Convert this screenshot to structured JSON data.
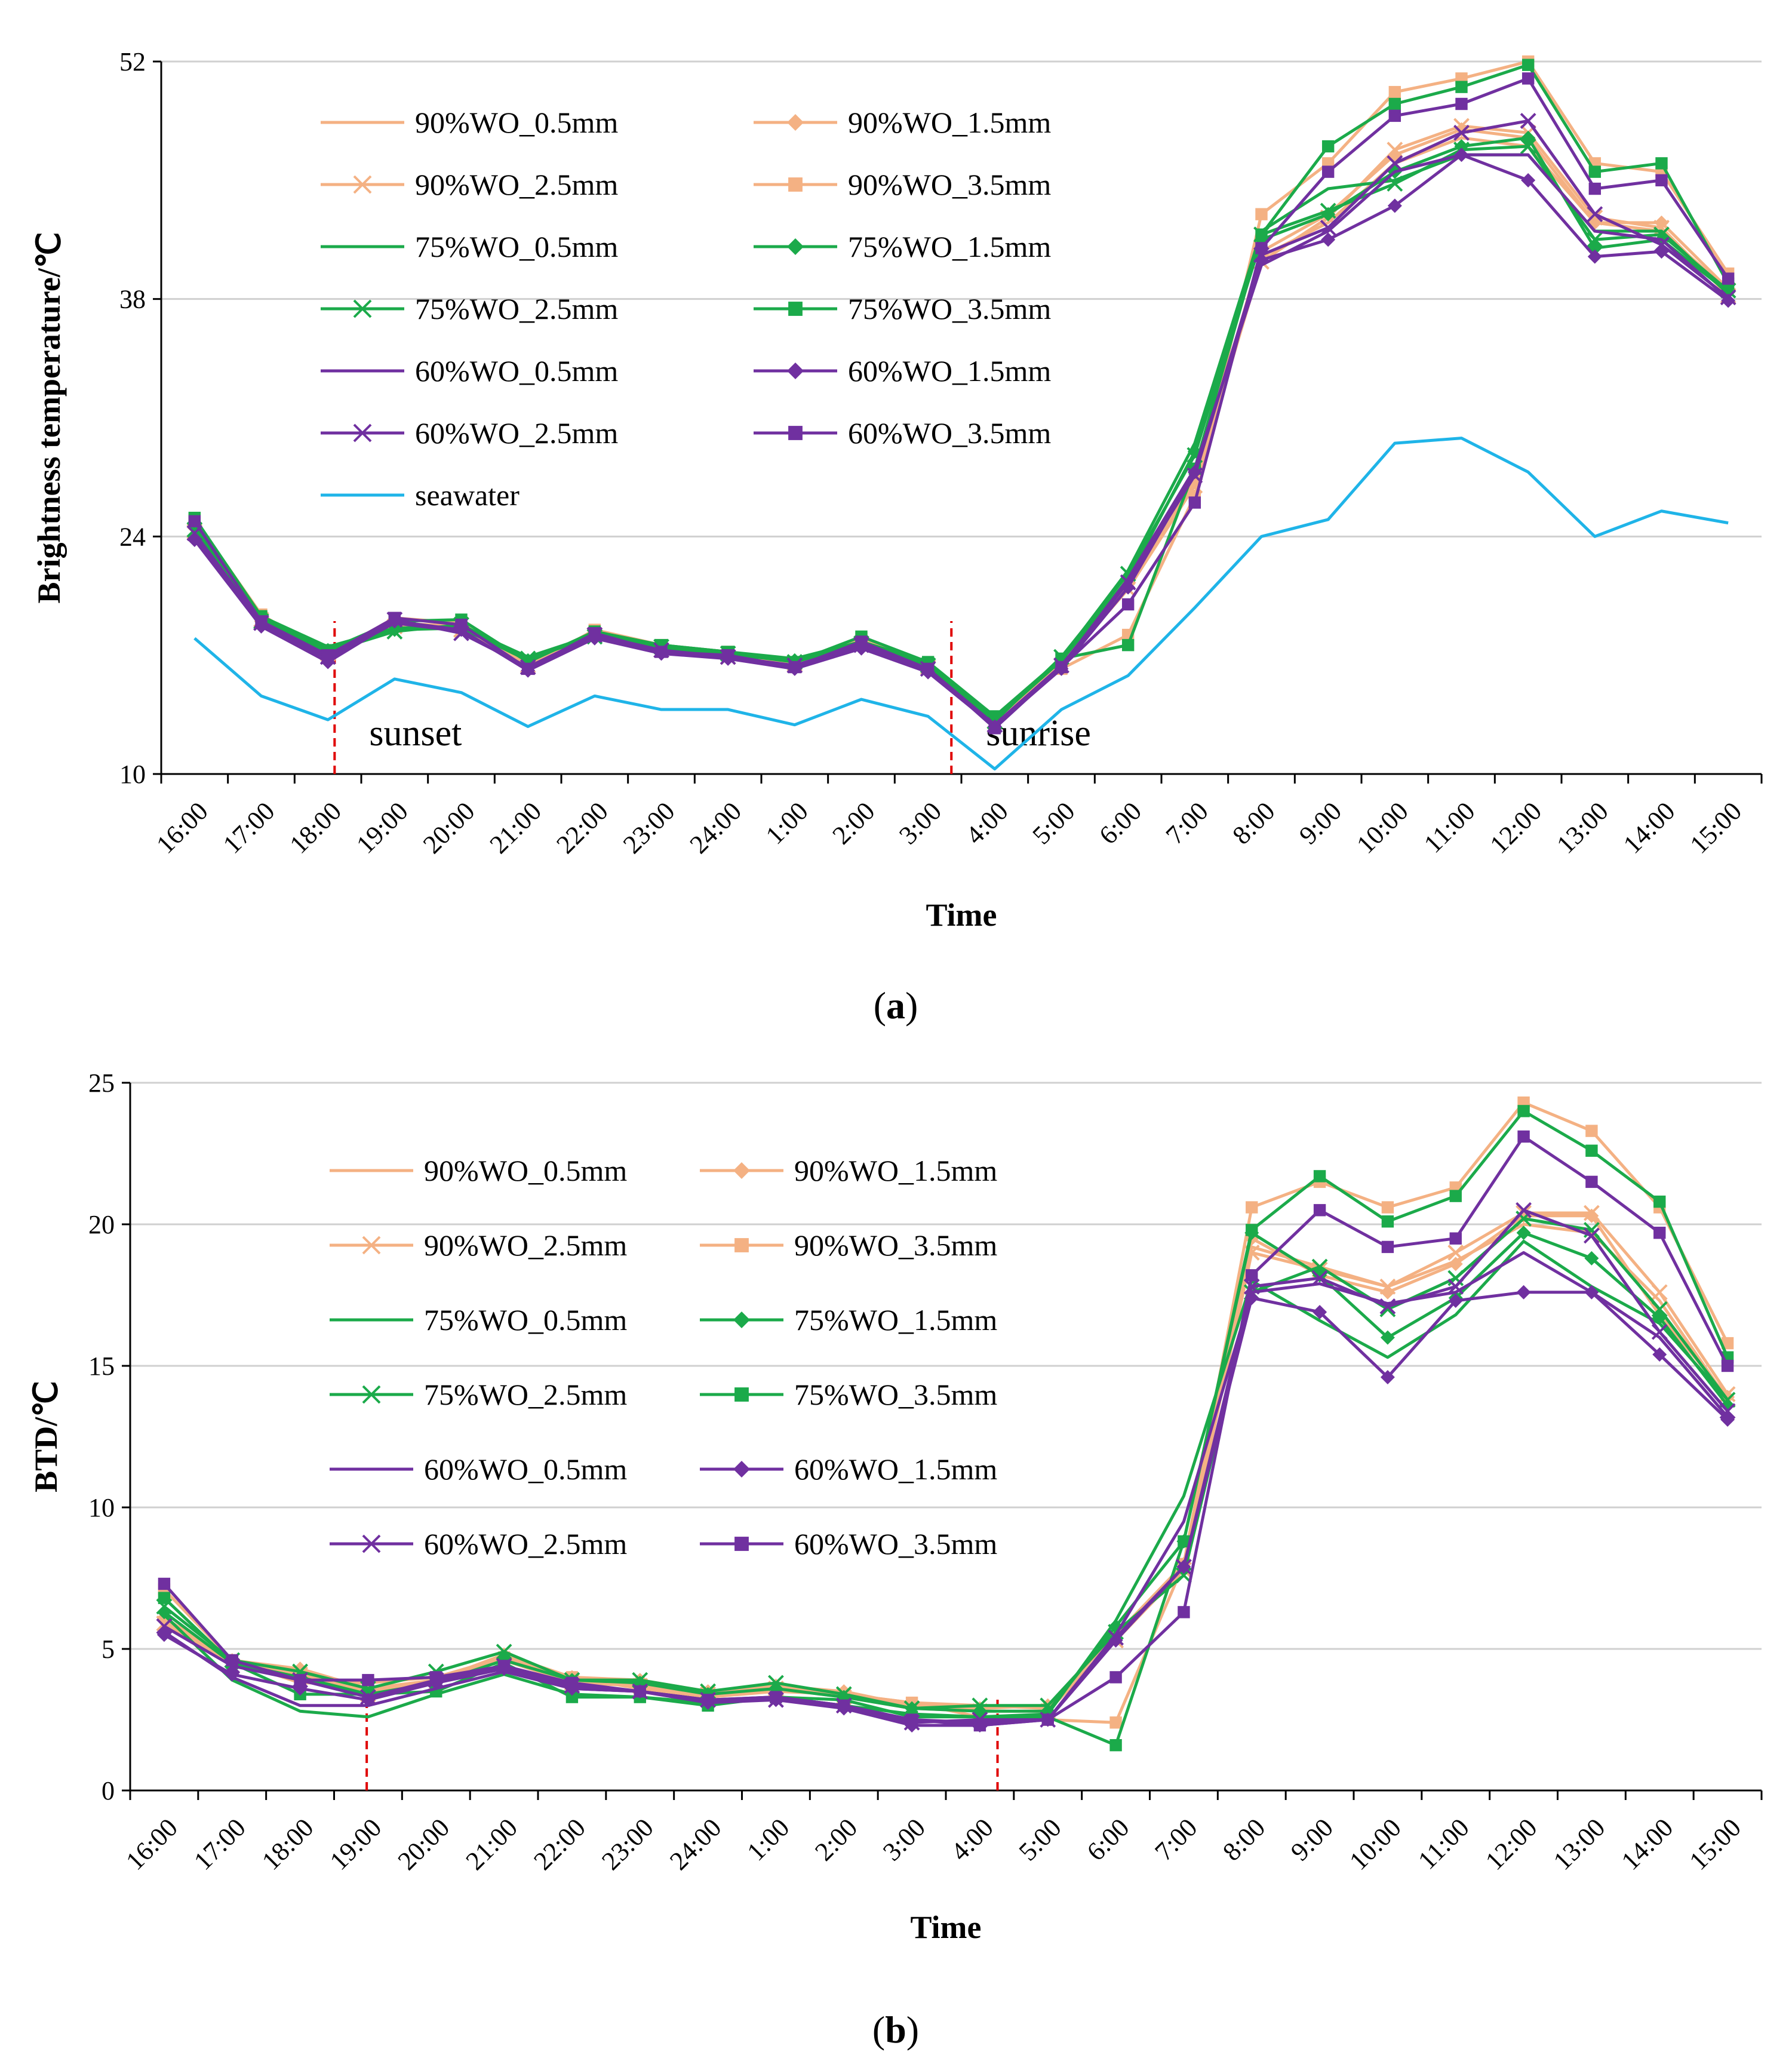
{
  "chart_data": [
    {
      "type": "line",
      "panel_label": "(a)",
      "panel_letter": "a",
      "xlabel": "Time",
      "ylabel": "Brightness temperature/℃",
      "ylim": [
        10,
        52
      ],
      "yticks": [
        10,
        24,
        38,
        52
      ],
      "grid": true,
      "legend_position": "top-left",
      "categories": [
        "16:00",
        "17:00",
        "18:00",
        "19:00",
        "20:00",
        "21:00",
        "22:00",
        "23:00",
        "24:00",
        "1:00",
        "2:00",
        "3:00",
        "4:00",
        "5:00",
        "6:00",
        "7:00",
        "8:00",
        "9:00",
        "10:00",
        "11:00",
        "12:00",
        "13:00",
        "14:00",
        "15:00"
      ],
      "vlines": [
        {
          "x": 2.1,
          "label": "sunset"
        },
        {
          "x": 11.35,
          "label": "sunrise"
        }
      ],
      "series": [
        {
          "name": "90%WO_0.5mm",
          "color": "#F4B183",
          "marker": "none",
          "values": [
            24.7,
            19.2,
            17.4,
            18.8,
            18.6,
            16.5,
            18.3,
            17.4,
            17.0,
            16.5,
            17.8,
            16.4,
            13.2,
            16.5,
            21.0,
            27.5,
            40.5,
            42.5,
            46.0,
            47.5,
            47.0,
            42.5,
            42.0,
            38.5
          ]
        },
        {
          "name": "90%WO_1.5mm",
          "color": "#F4B183",
          "marker": "diamond",
          "values": [
            24.5,
            19.0,
            17.2,
            18.9,
            18.7,
            16.6,
            18.4,
            17.5,
            17.1,
            16.6,
            17.9,
            16.5,
            13.3,
            16.6,
            21.2,
            27.2,
            40.8,
            43.0,
            46.5,
            48.0,
            47.5,
            42.5,
            42.5,
            38.6
          ]
        },
        {
          "name": "90%WO_2.5mm",
          "color": "#F4B183",
          "marker": "x",
          "values": [
            24.3,
            19.1,
            17.1,
            18.7,
            18.5,
            16.4,
            18.2,
            17.3,
            16.9,
            16.5,
            17.7,
            16.3,
            13.1,
            16.4,
            20.9,
            27.0,
            40.2,
            42.8,
            46.8,
            48.2,
            47.8,
            42.8,
            42.2,
            38.2
          ]
        },
        {
          "name": "90%WO_3.5mm",
          "color": "#F4B183",
          "marker": "square",
          "values": [
            25.0,
            19.4,
            17.0,
            19.2,
            18.9,
            16.3,
            18.5,
            17.6,
            17.2,
            16.4,
            18.0,
            16.4,
            13.0,
            16.2,
            18.2,
            26.4,
            43.0,
            46.0,
            50.2,
            51.0,
            52.0,
            46.0,
            45.5,
            39.5
          ]
        },
        {
          "name": "75%WO_0.5mm",
          "color": "#1BAA4A",
          "marker": "none",
          "values": [
            24.9,
            19.3,
            17.5,
            18.6,
            18.7,
            16.9,
            18.2,
            17.6,
            17.2,
            16.8,
            17.8,
            16.6,
            13.3,
            16.8,
            22.0,
            29.5,
            42.0,
            44.5,
            45.0,
            46.5,
            46.5,
            42.0,
            42.0,
            38.3
          ]
        },
        {
          "name": "75%WO_1.5mm",
          "color": "#1BAA4A",
          "marker": "diamond",
          "values": [
            24.6,
            19.1,
            17.3,
            18.5,
            18.6,
            16.7,
            18.3,
            17.4,
            17.0,
            16.7,
            17.6,
            16.5,
            13.2,
            16.7,
            21.5,
            29.0,
            41.5,
            43.0,
            45.5,
            47.0,
            47.5,
            41.0,
            41.5,
            38.4
          ]
        },
        {
          "name": "75%WO_2.5mm",
          "color": "#1BAA4A",
          "marker": "x",
          "values": [
            24.4,
            19.0,
            17.2,
            18.4,
            18.8,
            16.8,
            18.1,
            17.5,
            17.1,
            16.6,
            17.7,
            16.4,
            13.1,
            16.9,
            21.8,
            28.8,
            41.8,
            43.2,
            44.8,
            46.8,
            47.0,
            41.5,
            41.8,
            38.5
          ]
        },
        {
          "name": "75%WO_3.5mm",
          "color": "#1BAA4A",
          "marker": "square",
          "values": [
            25.1,
            19.3,
            17.3,
            19.0,
            19.1,
            16.6,
            18.4,
            17.6,
            17.2,
            16.6,
            18.1,
            16.6,
            13.4,
            16.8,
            17.6,
            28.0,
            41.8,
            47.0,
            49.5,
            50.5,
            51.8,
            45.5,
            46.0,
            38.9
          ]
        },
        {
          "name": "60%WO_0.5mm",
          "color": "#7030A0",
          "marker": "none",
          "values": [
            24.0,
            18.8,
            16.8,
            18.9,
            18.4,
            16.2,
            18.1,
            17.2,
            16.9,
            16.3,
            17.5,
            16.1,
            12.9,
            16.3,
            21.5,
            28.0,
            40.0,
            42.0,
            45.5,
            46.5,
            46.5,
            42.0,
            41.5,
            38.0
          ]
        },
        {
          "name": "60%WO_1.5mm",
          "color": "#7030A0",
          "marker": "diamond",
          "values": [
            23.8,
            18.7,
            16.6,
            19.0,
            18.5,
            16.1,
            18.0,
            17.1,
            16.8,
            16.2,
            17.4,
            16.0,
            12.8,
            16.2,
            21.0,
            27.8,
            40.3,
            41.5,
            43.5,
            46.5,
            45.0,
            40.5,
            40.8,
            37.9
          ]
        },
        {
          "name": "60%WO_2.5mm",
          "color": "#7030A0",
          "marker": "x",
          "values": [
            24.2,
            18.9,
            16.9,
            19.1,
            18.3,
            16.3,
            18.2,
            17.3,
            16.9,
            16.4,
            17.6,
            16.2,
            12.9,
            16.4,
            21.3,
            27.6,
            40.6,
            42.2,
            46.0,
            47.8,
            48.5,
            43.0,
            41.2,
            38.1
          ]
        },
        {
          "name": "60%WO_3.5mm",
          "color": "#7030A0",
          "marker": "square",
          "values": [
            24.9,
            19.0,
            17.0,
            19.2,
            18.8,
            16.2,
            18.3,
            17.2,
            17.0,
            16.3,
            17.8,
            16.2,
            12.7,
            16.3,
            20.0,
            26.0,
            41.0,
            45.5,
            48.8,
            49.5,
            51.0,
            44.5,
            45.0,
            39.2
          ]
        },
        {
          "name": "seawater",
          "color": "#1FB4E8",
          "marker": "none",
          "values": [
            18.0,
            14.6,
            13.2,
            15.6,
            14.8,
            12.8,
            14.6,
            13.8,
            13.8,
            12.9,
            14.4,
            13.4,
            10.3,
            13.8,
            15.8,
            19.8,
            24.0,
            25.0,
            29.5,
            29.8,
            27.8,
            24.0,
            25.5,
            24.8
          ]
        }
      ]
    },
    {
      "type": "line",
      "panel_label": "(b)",
      "panel_letter": "b",
      "xlabel": "Time",
      "ylabel": "BTD/℃",
      "ylim": [
        0,
        25
      ],
      "yticks": [
        0,
        5,
        10,
        15,
        20,
        25
      ],
      "grid": true,
      "legend_position": "top-left",
      "categories": [
        "16:00",
        "17:00",
        "18:00",
        "19:00",
        "20:00",
        "21:00",
        "22:00",
        "23:00",
        "24:00",
        "1:00",
        "2:00",
        "3:00",
        "4:00",
        "5:00",
        "6:00",
        "7:00",
        "8:00",
        "9:00",
        "10:00",
        "11:00",
        "12:00",
        "13:00",
        "14:00",
        "15:00"
      ],
      "vlines": [
        {
          "x": 2.98,
          "label": ""
        },
        {
          "x": 12.26,
          "label": ""
        }
      ],
      "series": [
        {
          "name": "90%WO_0.5mm",
          "color": "#F4B183",
          "marker": "none",
          "values": [
            6.0,
            4.5,
            4.2,
            3.5,
            3.8,
            4.7,
            3.9,
            3.8,
            3.4,
            3.6,
            3.4,
            3.1,
            3.0,
            2.9,
            5.3,
            7.9,
            19.2,
            18.5,
            17.8,
            18.7,
            20.0,
            19.7,
            17.3,
            13.8
          ]
        },
        {
          "name": "90%WO_1.5mm",
          "color": "#F4B183",
          "marker": "diamond",
          "values": [
            6.1,
            4.6,
            4.3,
            3.6,
            3.9,
            4.8,
            4.0,
            3.9,
            3.5,
            3.7,
            3.5,
            3.0,
            2.9,
            3.0,
            5.5,
            8.0,
            19.5,
            18.2,
            17.6,
            18.6,
            20.3,
            20.3,
            16.8,
            13.9
          ]
        },
        {
          "name": "90%WO_2.5mm",
          "color": "#F4B183",
          "marker": "x",
          "values": [
            5.9,
            4.4,
            4.1,
            3.4,
            3.8,
            4.6,
            3.8,
            3.7,
            3.4,
            3.6,
            3.3,
            2.9,
            2.8,
            2.8,
            5.3,
            7.8,
            19.0,
            18.4,
            17.8,
            19.0,
            20.4,
            20.4,
            17.6,
            14.0
          ]
        },
        {
          "name": "90%WO_3.5mm",
          "color": "#F4B183",
          "marker": "square",
          "values": [
            7.1,
            4.6,
            3.8,
            3.8,
            4.0,
            4.7,
            4.0,
            3.6,
            3.3,
            3.5,
            3.4,
            3.1,
            2.6,
            2.5,
            2.4,
            8.0,
            20.6,
            21.5,
            20.6,
            21.3,
            24.3,
            23.3,
            20.6,
            15.8
          ]
        },
        {
          "name": "75%WO_0.5mm",
          "color": "#1BAA4A",
          "marker": "none",
          "values": [
            6.2,
            3.9,
            2.8,
            2.6,
            3.4,
            4.1,
            3.4,
            3.3,
            3.1,
            3.3,
            3.0,
            2.7,
            2.6,
            2.7,
            6.0,
            10.4,
            18.0,
            16.6,
            15.3,
            16.8,
            19.4,
            17.8,
            16.5,
            13.8
          ]
        },
        {
          "name": "75%WO_1.5mm",
          "color": "#1BAA4A",
          "marker": "diamond",
          "values": [
            6.3,
            4.5,
            4.0,
            3.4,
            3.8,
            4.6,
            3.9,
            3.8,
            3.4,
            3.6,
            3.3,
            2.9,
            2.8,
            2.8,
            5.8,
            8.8,
            19.7,
            18.2,
            16.0,
            17.4,
            19.7,
            18.8,
            16.7,
            13.6
          ]
        },
        {
          "name": "75%WO_2.5mm",
          "color": "#1BAA4A",
          "marker": "x",
          "values": [
            6.5,
            4.6,
            4.2,
            3.6,
            4.2,
            4.9,
            3.9,
            3.9,
            3.5,
            3.8,
            3.4,
            2.9,
            3.0,
            3.0,
            5.6,
            7.6,
            17.6,
            18.5,
            17.0,
            18.1,
            20.2,
            19.8,
            17.0,
            13.8
          ]
        },
        {
          "name": "75%WO_3.5mm",
          "color": "#1BAA4A",
          "marker": "square",
          "values": [
            6.8,
            4.5,
            3.4,
            3.4,
            3.5,
            4.5,
            3.3,
            3.3,
            3.0,
            3.3,
            3.2,
            2.6,
            2.6,
            2.6,
            1.6,
            8.8,
            19.8,
            21.7,
            20.1,
            21.0,
            24.0,
            22.6,
            20.8,
            15.3
          ]
        },
        {
          "name": "60%WO_0.5mm",
          "color": "#7030A0",
          "marker": "none",
          "values": [
            5.6,
            4.0,
            3.0,
            3.0,
            3.6,
            4.2,
            3.6,
            3.5,
            3.2,
            3.3,
            3.0,
            2.5,
            2.4,
            2.5,
            5.5,
            9.5,
            17.6,
            17.9,
            17.2,
            17.6,
            19.0,
            17.6,
            16.0,
            13.2
          ]
        },
        {
          "name": "60%WO_1.5mm",
          "color": "#7030A0",
          "marker": "diamond",
          "values": [
            5.5,
            4.1,
            3.6,
            3.2,
            3.8,
            4.3,
            3.6,
            3.5,
            3.1,
            3.2,
            2.9,
            2.3,
            2.3,
            2.5,
            5.3,
            7.9,
            17.4,
            16.9,
            14.6,
            17.3,
            17.6,
            17.6,
            15.4,
            13.1
          ]
        },
        {
          "name": "60%WO_2.5mm",
          "color": "#7030A0",
          "marker": "x",
          "values": [
            5.8,
            4.4,
            3.9,
            3.3,
            3.9,
            4.4,
            3.7,
            3.5,
            3.2,
            3.2,
            3.0,
            2.4,
            2.5,
            2.5,
            5.4,
            7.9,
            17.8,
            18.1,
            17.1,
            17.8,
            20.5,
            19.6,
            16.2,
            13.4
          ]
        },
        {
          "name": "60%WO_3.5mm",
          "color": "#7030A0",
          "marker": "square",
          "values": [
            7.3,
            4.6,
            3.9,
            3.9,
            4.0,
            4.4,
            3.8,
            3.5,
            3.2,
            3.3,
            3.0,
            2.5,
            2.3,
            2.5,
            4.0,
            6.3,
            18.2,
            20.5,
            19.2,
            19.5,
            23.1,
            21.5,
            19.7,
            15.0
          ]
        }
      ]
    }
  ]
}
